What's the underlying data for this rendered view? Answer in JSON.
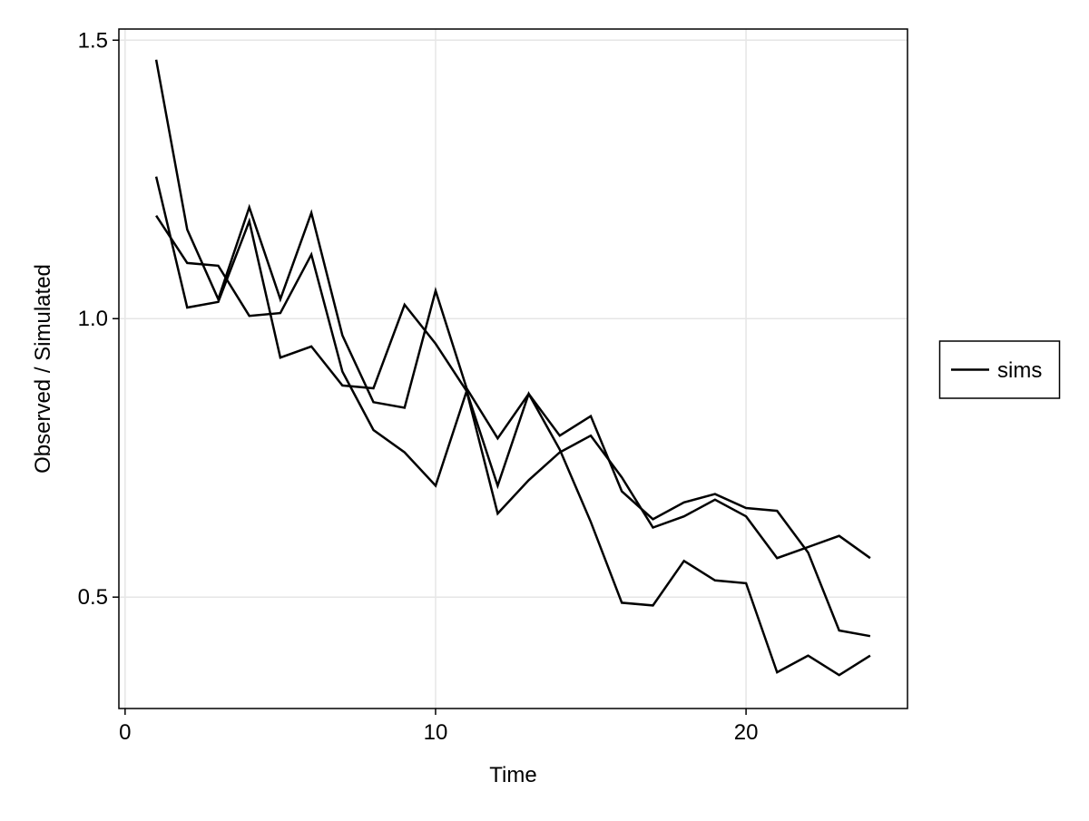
{
  "chart_data": {
    "type": "line",
    "title": "",
    "xlabel": "Time",
    "ylabel": "Observed / Simulated",
    "xlim": [
      -0.2,
      25.2
    ],
    "ylim": [
      0.3,
      1.52
    ],
    "x_ticks": [
      0,
      10,
      20
    ],
    "x_tick_labels": [
      "0",
      "10",
      "20"
    ],
    "y_ticks": [
      0.5,
      1.0,
      1.5
    ],
    "y_tick_labels": [
      "0.5",
      "1.0",
      "1.5"
    ],
    "grid": true,
    "legend": {
      "position": "right",
      "entries": [
        {
          "label": "sims",
          "color": "#000000"
        }
      ]
    },
    "line_color": "#000000",
    "x": [
      1,
      2,
      3,
      4,
      5,
      6,
      7,
      8,
      9,
      10,
      11,
      12,
      13,
      14,
      15,
      16,
      17,
      18,
      19,
      20,
      21,
      22,
      23,
      24
    ],
    "series": [
      {
        "values": [
          1.465,
          1.16,
          1.035,
          1.2,
          1.035,
          1.19,
          0.97,
          0.85,
          0.84,
          1.05,
          0.875,
          0.785,
          0.865,
          0.79,
          0.825,
          0.69,
          0.64,
          0.67,
          0.685,
          0.66,
          0.655,
          0.58,
          0.44,
          0.43
        ]
      },
      {
        "values": [
          1.255,
          1.02,
          1.03,
          1.175,
          0.93,
          0.95,
          0.88,
          0.875,
          1.025,
          0.955,
          0.87,
          0.7,
          0.865,
          0.765,
          0.635,
          0.49,
          0.485,
          0.565,
          0.53,
          0.525,
          0.365,
          0.395,
          0.36,
          0.395
        ]
      },
      {
        "values": [
          1.185,
          1.1,
          1.095,
          1.005,
          1.01,
          1.115,
          0.905,
          0.8,
          0.76,
          0.7,
          0.87,
          0.65,
          0.71,
          0.76,
          0.79,
          0.715,
          0.625,
          0.645,
          0.675,
          0.645,
          0.57,
          0.59,
          0.61,
          0.57
        ]
      }
    ]
  }
}
